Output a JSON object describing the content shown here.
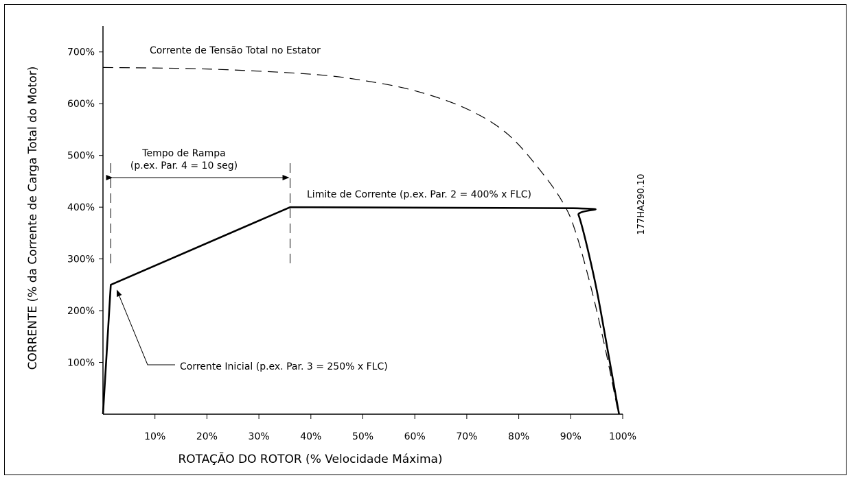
{
  "chart_data": {
    "type": "line",
    "xlabel": "ROTAÇÃO DO ROTOR (% Velocidade Máxima)",
    "ylabel": "CORRENTE (% da Corrente de Carga Total do Motor)",
    "xlim": [
      0,
      100
    ],
    "ylim": [
      0,
      750
    ],
    "x_ticks": [
      10,
      20,
      30,
      40,
      50,
      60,
      70,
      80,
      90,
      100
    ],
    "x_tick_labels": [
      "10%",
      "20%",
      "30%",
      "40%",
      "50%",
      "60%",
      "70%",
      "80%",
      "90%",
      "100%"
    ],
    "y_ticks": [
      100,
      200,
      300,
      400,
      500,
      600,
      700
    ],
    "y_tick_labels": [
      "100%",
      "200%",
      "300%",
      "400%",
      "500%",
      "600%",
      "700%"
    ],
    "grid": false,
    "series": [
      {
        "name": "Corrente de Tensão Total no Estator",
        "style": "dashed",
        "x": [
          0,
          20,
          40,
          50,
          60,
          70,
          78,
          85,
          89,
          91,
          93,
          95,
          97,
          99
        ],
        "y": [
          670,
          667,
          657,
          645,
          625,
          590,
          540,
          460,
          400,
          350,
          280,
          200,
          110,
          10
        ]
      },
      {
        "name": "Limite de Corrente (p.ex. Par. 2 = 400% x FLC)",
        "style": "solid",
        "x": [
          0,
          1.5,
          36,
          90.5,
          91.5,
          93,
          95,
          97,
          99.3
        ],
        "y": [
          0,
          250,
          400,
          398,
          385,
          330,
          240,
          130,
          0
        ]
      }
    ],
    "annotations": {
      "stator_label": "Corrente de Tensão Total no Estator",
      "ramp_title": "Tempo de Rampa",
      "ramp_example": "(p.ex. Par. 4 = 10 seg)",
      "ramp_start_x": 1.5,
      "ramp_end_x": 36,
      "limit_label": "Limite de Corrente (p.ex. Par. 2 = 400% x FLC)",
      "initial_label": "Corrente Inicial (p.ex. Par. 3 = 250% x FLC)",
      "initial_point": [
        1.5,
        250
      ],
      "figure_code": "177HA290.10"
    }
  }
}
